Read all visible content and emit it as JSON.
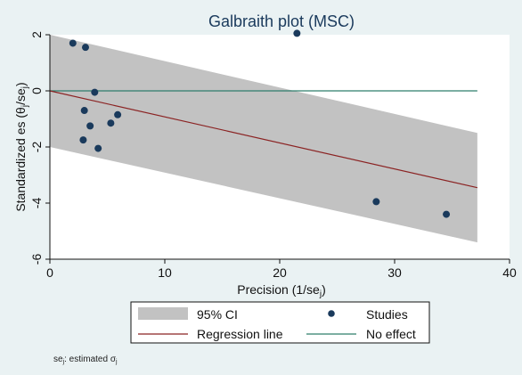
{
  "chart_data": {
    "type": "scatter",
    "title": "Galbraith plot (MSC)",
    "xlabel": "Precision (1/se",
    "xlabel_sub": "j",
    "xlabel_end": ")",
    "ylabel": "Standardized es  (θ",
    "ylabel_sub1": "j",
    "ylabel_mid": "/se",
    "ylabel_sub2": "j",
    "ylabel_end": ")",
    "xlim": [
      0,
      40
    ],
    "ylim": [
      -6,
      2
    ],
    "xticks": [
      "0",
      "10",
      "20",
      "30",
      "40"
    ],
    "yticks": [
      "-6",
      "-4",
      "-2",
      "0",
      "2"
    ],
    "xtick_values": [
      0,
      10,
      20,
      30,
      40
    ],
    "ytick_values": [
      -6,
      -4,
      -2,
      0,
      2
    ],
    "grid": false,
    "points": [
      {
        "x": 2.0,
        "y": 1.7
      },
      {
        "x": 3.1,
        "y": 1.55
      },
      {
        "x": 21.5,
        "y": 2.05
      },
      {
        "x": 3.9,
        "y": -0.05
      },
      {
        "x": 3.0,
        "y": -0.7
      },
      {
        "x": 5.9,
        "y": -0.85
      },
      {
        "x": 5.3,
        "y": -1.15
      },
      {
        "x": 3.5,
        "y": -1.25
      },
      {
        "x": 2.9,
        "y": -1.75
      },
      {
        "x": 4.2,
        "y": -2.05
      },
      {
        "x": 28.4,
        "y": -3.95
      },
      {
        "x": 34.5,
        "y": -4.4
      }
    ],
    "regression_line": {
      "x": [
        0,
        37.2
      ],
      "y": [
        0,
        -3.45
      ]
    },
    "no_effect_line": {
      "x": [
        0,
        37.2
      ],
      "y": [
        0,
        0
      ]
    },
    "ci_band": {
      "x": [
        0,
        37.2
      ],
      "upper": [
        2,
        -1.5
      ],
      "lower": [
        -2,
        -5.4
      ]
    },
    "colors": {
      "band": "#c2c2c2",
      "points": "#1a3a5c",
      "regression": "#8b2323",
      "no_effect": "#2e7d6b",
      "background": "#eaf2f3",
      "plot_background": "#ffffff"
    },
    "legend": {
      "placement": "bottom",
      "entries": [
        "95% CI",
        "Studies",
        "Regression line",
        "No effect"
      ]
    },
    "note": {
      "pre": "se",
      "sub1": "j",
      "mid": ": estimated σ",
      "sub2": "j"
    }
  }
}
